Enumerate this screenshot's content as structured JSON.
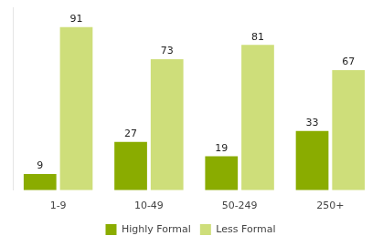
{
  "chart_data": {
    "type": "bar",
    "categories": [
      "1-9",
      "10-49",
      "50-249",
      "250+"
    ],
    "series": [
      {
        "name": "Highly Formal",
        "color": "#8aac00",
        "values": [
          9,
          27,
          19,
          33
        ]
      },
      {
        "name": "Less Formal",
        "color": "#cede7a",
        "values": [
          91,
          73,
          81,
          67
        ]
      }
    ],
    "ylim": [
      0,
      102
    ],
    "grid": false,
    "legend": "bottom",
    "data_labels": true,
    "tick_labels": "x"
  }
}
